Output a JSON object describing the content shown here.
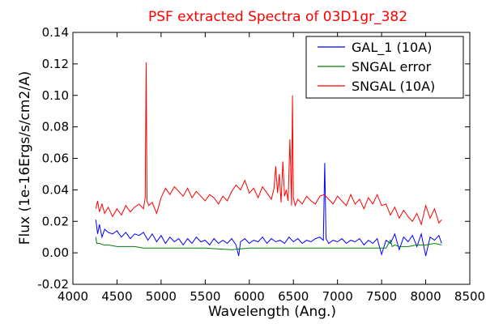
{
  "chart_data": {
    "type": "line",
    "title": "PSF extracted Spectra of 03D1gr_382",
    "title_color": "#ff0000",
    "xlabel": "Wavelength (Ang.)",
    "ylabel": "Flux (1e-16Ergs/s/cm2/A)",
    "xlim": [
      4000,
      8500
    ],
    "ylim": [
      -0.02,
      0.14
    ],
    "xticks": [
      4000,
      4500,
      5000,
      5500,
      6000,
      6500,
      7000,
      7500,
      8000,
      8500
    ],
    "xtick_labels": [
      "4000",
      "4500",
      "5000",
      "5500",
      "6000",
      "6500",
      "7000",
      "7500",
      "8000",
      "8500"
    ],
    "yticks": [
      -0.02,
      0.0,
      0.02,
      0.04,
      0.06,
      0.08,
      0.1,
      0.12,
      0.14
    ],
    "ytick_labels": [
      "-0.02",
      "0.00",
      "0.02",
      "0.04",
      "0.06",
      "0.08",
      "0.10",
      "0.12",
      "0.14"
    ],
    "legend_position": "top-right",
    "grid": false,
    "series": [
      {
        "name": "GAL_1 (10A)",
        "color": "#0000ff",
        "x": [
          4260,
          4280,
          4300,
          4330,
          4360,
          4400,
          4450,
          4500,
          4550,
          4600,
          4650,
          4700,
          4750,
          4800,
          4850,
          4900,
          4950,
          5000,
          5050,
          5100,
          5150,
          5200,
          5250,
          5300,
          5350,
          5400,
          5450,
          5500,
          5550,
          5600,
          5650,
          5700,
          5750,
          5800,
          5850,
          5880,
          5900,
          5950,
          6000,
          6050,
          6100,
          6150,
          6200,
          6250,
          6300,
          6350,
          6400,
          6450,
          6500,
          6550,
          6600,
          6650,
          6700,
          6750,
          6800,
          6840,
          6855,
          6870,
          6900,
          6950,
          7000,
          7050,
          7100,
          7150,
          7200,
          7250,
          7300,
          7350,
          7400,
          7450,
          7500,
          7550,
          7600,
          7650,
          7700,
          7750,
          7800,
          7850,
          7900,
          7950,
          8000,
          8050,
          8100,
          8150,
          8180
        ],
        "y": [
          0.021,
          0.012,
          0.018,
          0.01,
          0.015,
          0.013,
          0.012,
          0.014,
          0.01,
          0.013,
          0.009,
          0.012,
          0.011,
          0.013,
          0.008,
          0.012,
          0.007,
          0.011,
          0.006,
          0.01,
          0.007,
          0.009,
          0.005,
          0.009,
          0.006,
          0.01,
          0.007,
          0.008,
          0.005,
          0.009,
          0.006,
          0.008,
          0.006,
          0.009,
          0.005,
          -0.002,
          0.007,
          0.009,
          0.006,
          0.008,
          0.007,
          0.01,
          0.006,
          0.009,
          0.007,
          0.008,
          0.006,
          0.01,
          0.007,
          0.009,
          0.006,
          0.008,
          0.007,
          0.009,
          0.01,
          0.008,
          0.057,
          0.009,
          0.006,
          0.008,
          0.007,
          0.009,
          0.006,
          0.008,
          0.007,
          0.009,
          0.005,
          0.008,
          0.006,
          0.009,
          -0.001,
          0.008,
          0.006,
          0.012,
          0.002,
          0.01,
          0.007,
          0.011,
          0.004,
          0.012,
          -0.002,
          0.01,
          0.008,
          0.011,
          0.006
        ]
      },
      {
        "name": "SNGAL error",
        "color": "#008000",
        "x": [
          4260,
          4270,
          4300,
          4350,
          4400,
          4500,
          4600,
          4700,
          4800,
          5000,
          5200,
          5500,
          5800,
          6000,
          6200,
          6500,
          6800,
          7000,
          7200,
          7400,
          7550,
          7600,
          7620,
          7650,
          7700,
          7800,
          7900,
          8000,
          8100,
          8180
        ],
        "y": [
          0.01,
          0.006,
          0.006,
          0.005,
          0.005,
          0.004,
          0.004,
          0.004,
          0.003,
          0.003,
          0.003,
          0.003,
          0.002,
          0.003,
          0.003,
          0.003,
          0.003,
          0.003,
          0.003,
          0.003,
          0.003,
          0.008,
          0.004,
          0.005,
          0.004,
          0.004,
          0.005,
          0.005,
          0.006,
          0.005
        ]
      },
      {
        "name": "SNGAL (10A)",
        "color": "#ff0000",
        "x": [
          4260,
          4280,
          4300,
          4330,
          4360,
          4400,
          4450,
          4500,
          4550,
          4600,
          4650,
          4700,
          4750,
          4800,
          4820,
          4830,
          4840,
          4860,
          4900,
          4950,
          5000,
          5050,
          5100,
          5150,
          5200,
          5250,
          5300,
          5350,
          5400,
          5450,
          5500,
          5550,
          5600,
          5650,
          5700,
          5750,
          5800,
          5850,
          5900,
          5950,
          6000,
          6050,
          6100,
          6150,
          6200,
          6250,
          6280,
          6300,
          6320,
          6340,
          6360,
          6380,
          6400,
          6420,
          6440,
          6460,
          6480,
          6490,
          6500,
          6520,
          6550,
          6600,
          6650,
          6700,
          6750,
          6800,
          6850,
          6900,
          6950,
          7000,
          7050,
          7100,
          7150,
          7200,
          7250,
          7300,
          7350,
          7400,
          7450,
          7500,
          7550,
          7600,
          7650,
          7700,
          7750,
          7800,
          7850,
          7900,
          7950,
          8000,
          8050,
          8100,
          8150,
          8180
        ],
        "y": [
          0.028,
          0.033,
          0.026,
          0.031,
          0.025,
          0.029,
          0.023,
          0.028,
          0.024,
          0.03,
          0.026,
          0.029,
          0.031,
          0.028,
          0.035,
          0.121,
          0.033,
          0.03,
          0.032,
          0.025,
          0.035,
          0.041,
          0.037,
          0.042,
          0.039,
          0.036,
          0.041,
          0.035,
          0.039,
          0.036,
          0.033,
          0.037,
          0.035,
          0.031,
          0.036,
          0.033,
          0.039,
          0.043,
          0.04,
          0.046,
          0.038,
          0.041,
          0.035,
          0.042,
          0.038,
          0.034,
          0.041,
          0.055,
          0.038,
          0.05,
          0.032,
          0.058,
          0.036,
          0.04,
          0.033,
          0.072,
          0.03,
          0.1,
          0.035,
          0.03,
          0.034,
          0.031,
          0.036,
          0.033,
          0.031,
          0.036,
          0.037,
          0.034,
          0.031,
          0.036,
          0.033,
          0.03,
          0.037,
          0.031,
          0.034,
          0.028,
          0.035,
          0.031,
          0.037,
          0.03,
          0.031,
          0.024,
          0.029,
          0.022,
          0.027,
          0.023,
          0.02,
          0.025,
          0.018,
          0.03,
          0.022,
          0.028,
          0.019,
          0.021
        ]
      }
    ]
  }
}
